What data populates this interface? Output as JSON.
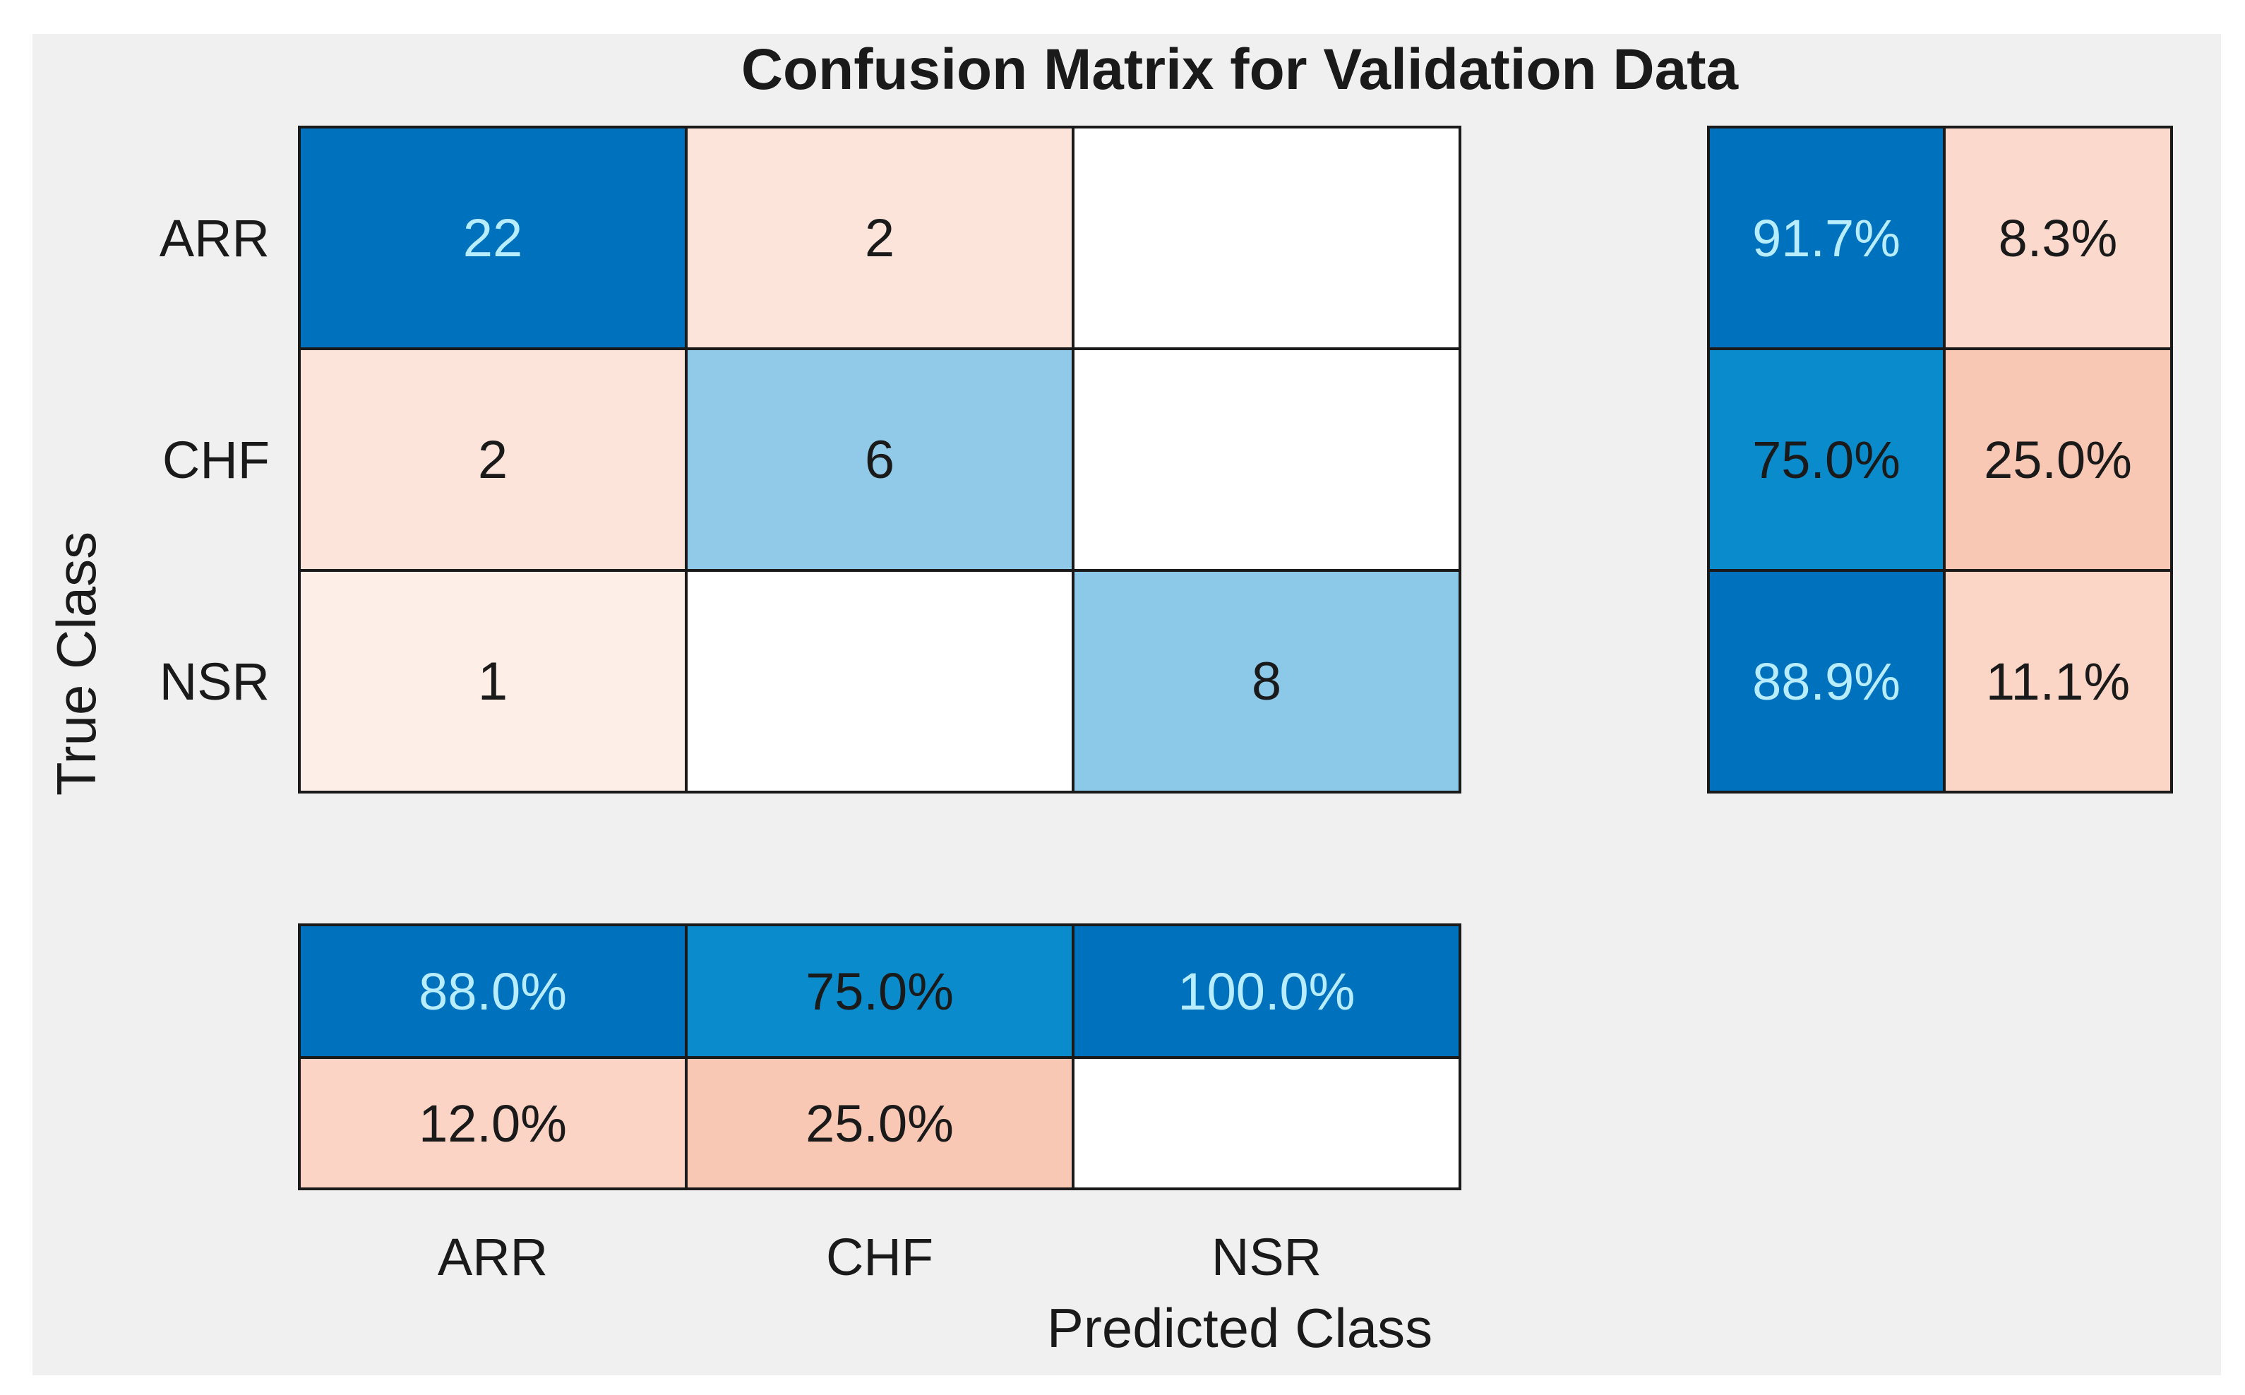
{
  "chart_data": {
    "type": "heatmap",
    "title": "Confusion Matrix for Validation Data",
    "xlabel": "Predicted Class",
    "ylabel": "True Class",
    "classes": [
      "ARR",
      "CHF",
      "NSR"
    ],
    "matrix": [
      [
        22,
        2,
        null
      ],
      [
        2,
        6,
        null
      ],
      [
        1,
        null,
        8
      ]
    ],
    "row_summary": {
      "correct": [
        "91.7%",
        "75.0%",
        "88.9%"
      ],
      "incorrect": [
        "8.3%",
        "25.0%",
        "11.1%"
      ]
    },
    "column_summary": {
      "correct": [
        "88.0%",
        "75.0%",
        "100.0%"
      ],
      "incorrect": [
        "12.0%",
        "25.0%",
        ""
      ]
    }
  },
  "colors": {
    "figure_bg": "#f0f0f0",
    "page_bg": "#ffffff",
    "grid_line": "#1a1a1a",
    "text_dark": "#1a1a1a",
    "text_light": "#ffffff",
    "diag_dark": "#0072bd",
    "diag_mid": "#0a8ccc",
    "diag_light": "#9fd0ea",
    "off_diag_light": "#fde7df",
    "off_diag_mid": "#f9c8b4",
    "empty": "#ffffff"
  }
}
